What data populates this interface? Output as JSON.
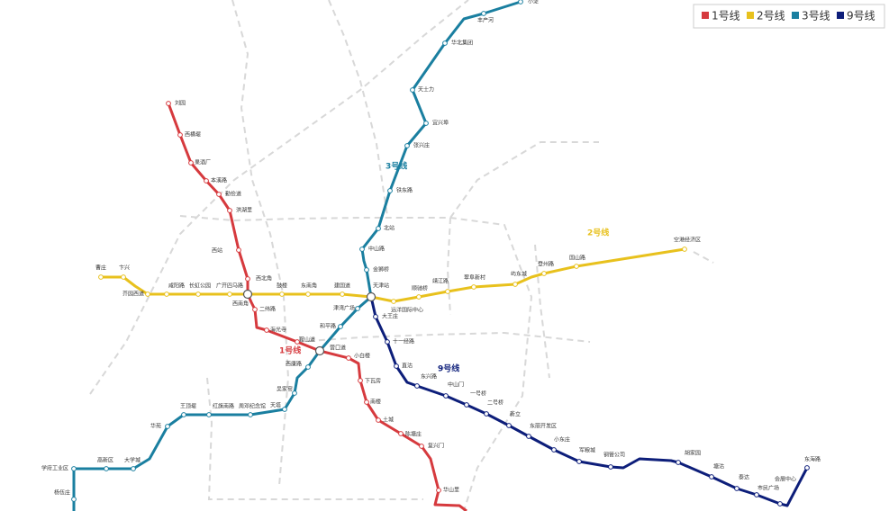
{
  "lines": [
    {
      "name": "1号线",
      "color": "#d63a3e",
      "stations": [
        "刘园",
        "西横堤",
        "果酒厂",
        "本溪路",
        "勤俭道",
        "洪湖里",
        "西站",
        "西北角",
        "西南角",
        "二纬路",
        "海光寺",
        "鞍山道",
        "营口道",
        "小白楼",
        "下瓦房",
        "南楼",
        "土城",
        "陈塘庄",
        "复兴门",
        "华山里"
      ]
    },
    {
      "name": "2号线",
      "color": "#e8c11d",
      "stations": [
        "曹庄",
        "卞兴",
        "芥园西道",
        "咸阳路",
        "长虹公园",
        "广开四马路",
        "鼓楼",
        "东南角",
        "建国道",
        "天津站",
        "远洋国际中心",
        "顺驰桥",
        "靖江路",
        "翠阜新村",
        "屿东城",
        "登州路",
        "国山路",
        "空港经济区"
      ]
    },
    {
      "name": "3号线",
      "color": "#1a7fa0",
      "stations": [
        "小淀",
        "丰产河",
        "华北集团",
        "天士力",
        "宜兴埠",
        "张兴庄",
        "铁东路",
        "北站",
        "中山路",
        "金狮桥",
        "津湾广场",
        "和平路",
        "西康路",
        "吴家窑",
        "天塔",
        "周邓纪念馆",
        "红旗南路",
        "王顶堤",
        "华苑",
        "大学城",
        "高新区",
        "学府工业区",
        "杨伍庄"
      ]
    },
    {
      "name": "9号线",
      "color": "#0d1e7a",
      "stations": [
        "大王庄",
        "十一经路",
        "直沽",
        "东兴路",
        "中山门",
        "一号桥",
        "二号桥",
        "新立",
        "东丽开发区",
        "小东庄",
        "军粮城",
        "钢管公司",
        "胡家园",
        "塘沽",
        "泰达",
        "市民广场",
        "会展中心",
        "东海路"
      ]
    }
  ]
}
